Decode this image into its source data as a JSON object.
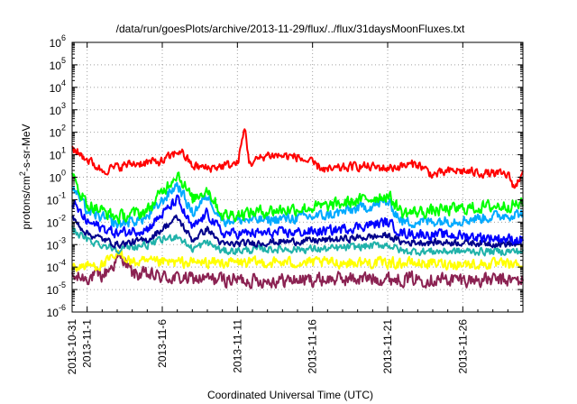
{
  "chart_data": {
    "type": "line",
    "title": "/data/run/goesPlots/archive/2013-11-29/flux/../flux/31daysMoonFluxes.txt",
    "xlabel": "Coordinated Universal Time (UTC)",
    "ylabel_main": "protons/cm",
    "ylabel_sup": "2",
    "ylabel_tail": "-s-sr-MeV",
    "yscale": "log",
    "ylim_exp": [
      -6,
      6
    ],
    "y_ticks": [
      {
        "exp": -6,
        "base": "10",
        "sup": "-6"
      },
      {
        "exp": -5,
        "base": "10",
        "sup": "-5"
      },
      {
        "exp": -4,
        "base": "10",
        "sup": "-4"
      },
      {
        "exp": -3,
        "base": "10",
        "sup": "-3"
      },
      {
        "exp": -2,
        "base": "10",
        "sup": "-2"
      },
      {
        "exp": -1,
        "base": "10",
        "sup": "-1"
      },
      {
        "exp": 0,
        "base": "10",
        "sup": "0"
      },
      {
        "exp": 1,
        "base": "10",
        "sup": "1"
      },
      {
        "exp": 2,
        "base": "10",
        "sup": "2"
      },
      {
        "exp": 3,
        "base": "10",
        "sup": "3"
      },
      {
        "exp": 4,
        "base": "10",
        "sup": "4"
      },
      {
        "exp": 5,
        "base": "10",
        "sup": "5"
      },
      {
        "exp": 6,
        "base": "10",
        "sup": "6"
      }
    ],
    "xlim_days": [
      0,
      30
    ],
    "x_ticks": [
      {
        "day": 0,
        "label": "2013-10-31"
      },
      {
        "day": 1,
        "label": "2013-11-1"
      },
      {
        "day": 6,
        "label": "2013-11-6"
      },
      {
        "day": 11,
        "label": "2013-11-11"
      },
      {
        "day": 16,
        "label": "2013-11-16"
      },
      {
        "day": 21,
        "label": "2013-11-21"
      },
      {
        "day": 26,
        "label": "2013-11-26"
      }
    ],
    "grid": true,
    "series": [
      {
        "name": "red",
        "color": "#ff0000",
        "jitter": 0.18,
        "base_log": [
          [
            0,
            1.3
          ],
          [
            1,
            0.8
          ],
          [
            2,
            0.3
          ],
          [
            4,
            0.6
          ],
          [
            6,
            0.7
          ],
          [
            7.2,
            1.2
          ],
          [
            8,
            0.5
          ],
          [
            9,
            0.4
          ],
          [
            11,
            0.6
          ],
          [
            11.5,
            2.2
          ],
          [
            11.8,
            0.6
          ],
          [
            13,
            1.0
          ],
          [
            15,
            0.9
          ],
          [
            17,
            0.3
          ],
          [
            19,
            0.5
          ],
          [
            21,
            0.4
          ],
          [
            23,
            0.6
          ],
          [
            24,
            0.1
          ],
          [
            25.5,
            0.3
          ],
          [
            27,
            0.2
          ],
          [
            29,
            0.1
          ],
          [
            29.5,
            -0.5
          ],
          [
            30,
            0.4
          ]
        ]
      },
      {
        "name": "green",
        "color": "#00ff00",
        "jitter": 0.25,
        "base_log": [
          [
            0,
            0.0
          ],
          [
            1,
            -1.2
          ],
          [
            3,
            -1.8
          ],
          [
            5,
            -1.5
          ],
          [
            7,
            0.2
          ],
          [
            8,
            -1.0
          ],
          [
            9,
            -0.5
          ],
          [
            10,
            -1.7
          ],
          [
            13,
            -1.5
          ],
          [
            17,
            -1.3
          ],
          [
            21,
            -0.8
          ],
          [
            22,
            -1.6
          ],
          [
            26,
            -1.4
          ],
          [
            30,
            -1.2
          ]
        ]
      },
      {
        "name": "skyblue",
        "color": "#00aaff",
        "jitter": 0.22,
        "base_log": [
          [
            0,
            -0.4
          ],
          [
            1,
            -1.5
          ],
          [
            3,
            -2.1
          ],
          [
            5,
            -1.8
          ],
          [
            7,
            -0.3
          ],
          [
            8,
            -1.6
          ],
          [
            9,
            -0.8
          ],
          [
            10,
            -1.9
          ],
          [
            13,
            -1.9
          ],
          [
            17,
            -1.7
          ],
          [
            21,
            -1.1
          ],
          [
            22,
            -2.0
          ],
          [
            26,
            -1.9
          ],
          [
            30,
            -1.6
          ]
        ]
      },
      {
        "name": "blue",
        "color": "#0000ff",
        "jitter": 0.2,
        "base_log": [
          [
            0,
            -1.1
          ],
          [
            1,
            -2.0
          ],
          [
            3,
            -2.5
          ],
          [
            5,
            -2.3
          ],
          [
            7,
            -1.0
          ],
          [
            8,
            -2.3
          ],
          [
            9,
            -1.6
          ],
          [
            10,
            -2.5
          ],
          [
            13,
            -2.5
          ],
          [
            17,
            -2.4
          ],
          [
            21,
            -2.0
          ],
          [
            22,
            -2.5
          ],
          [
            26,
            -2.6
          ],
          [
            30,
            -2.8
          ]
        ]
      },
      {
        "name": "navy",
        "color": "#00008b",
        "jitter": 0.14,
        "base_log": [
          [
            0,
            -1.8
          ],
          [
            1,
            -2.5
          ],
          [
            3,
            -3.0
          ],
          [
            5,
            -2.8
          ],
          [
            7,
            -1.8
          ],
          [
            8,
            -2.8
          ],
          [
            9,
            -2.3
          ],
          [
            10,
            -3.0
          ],
          [
            13,
            -2.9
          ],
          [
            17,
            -2.8
          ],
          [
            21,
            -2.6
          ],
          [
            22,
            -2.9
          ],
          [
            26,
            -2.9
          ],
          [
            30,
            -3.0
          ]
        ]
      },
      {
        "name": "teal",
        "color": "#20b2aa",
        "jitter": 0.15,
        "base_log": [
          [
            0,
            -2.3
          ],
          [
            1,
            -2.8
          ],
          [
            3,
            -3.2
          ],
          [
            5,
            -3.0
          ],
          [
            7,
            -2.6
          ],
          [
            8,
            -3.2
          ],
          [
            9,
            -2.9
          ],
          [
            10,
            -3.3
          ],
          [
            13,
            -3.2
          ],
          [
            17,
            -3.2
          ],
          [
            21,
            -3.0
          ],
          [
            22,
            -3.3
          ],
          [
            26,
            -3.3
          ],
          [
            30,
            -3.3
          ]
        ]
      },
      {
        "name": "yellow",
        "color": "#ffff00",
        "jitter": 0.22,
        "base_log": [
          [
            0,
            -4.0
          ],
          [
            2,
            -3.9
          ],
          [
            3.3,
            -3.4
          ],
          [
            4,
            -3.8
          ],
          [
            7,
            -3.8
          ],
          [
            13,
            -3.8
          ],
          [
            20,
            -3.8
          ],
          [
            30,
            -3.9
          ]
        ]
      },
      {
        "name": "maroon",
        "color": "#8b2252",
        "jitter": 0.28,
        "base_log": [
          [
            0,
            -4.5
          ],
          [
            2,
            -4.4
          ],
          [
            3.3,
            -3.5
          ],
          [
            4,
            -4.3
          ],
          [
            7,
            -4.5
          ],
          [
            13,
            -4.6
          ],
          [
            20,
            -4.5
          ],
          [
            30,
            -4.6
          ]
        ]
      }
    ]
  }
}
